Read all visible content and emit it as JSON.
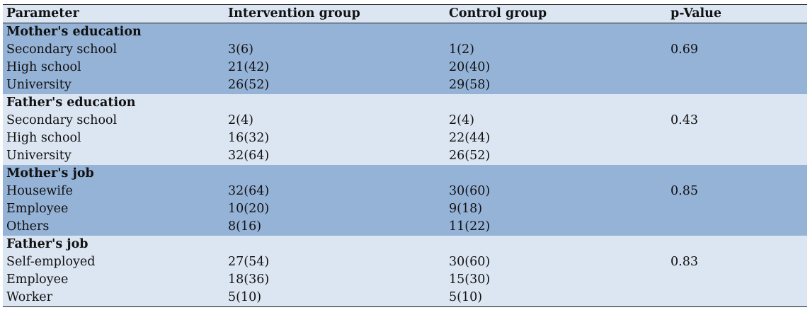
{
  "table": {
    "headers": [
      "Parameter",
      "Intervention group",
      "Control group",
      "p-Value"
    ],
    "sections": [
      {
        "title": "Mother's education",
        "rows": [
          [
            "Secondary school",
            "3(6)",
            "1(2)",
            "0.69"
          ],
          [
            "High school",
            "21(42)",
            "20(40)",
            ""
          ],
          [
            "University",
            "26(52)",
            "29(58)",
            ""
          ]
        ]
      },
      {
        "title": "Father's education",
        "rows": [
          [
            "Secondary school",
            "2(4)",
            "2(4)",
            "0.43"
          ],
          [
            "High school",
            "16(32)",
            "22(44)",
            ""
          ],
          [
            "University",
            "32(64)",
            "26(52)",
            ""
          ]
        ]
      },
      {
        "title": "Mother's job",
        "rows": [
          [
            "Housewife",
            "32(64)",
            "30(60)",
            "0.85"
          ],
          [
            "Employee",
            "10(20)",
            "9(18)",
            ""
          ],
          [
            "Others",
            "8(16)",
            "11(22)",
            ""
          ]
        ]
      },
      {
        "title": "Father's job",
        "rows": [
          [
            "Self-employed",
            "27(54)",
            "30(60)",
            "0.83"
          ],
          [
            "Employee",
            "18(36)",
            "15(30)",
            ""
          ],
          [
            "Worker",
            "5(10)",
            "5(10)",
            ""
          ]
        ]
      }
    ]
  }
}
